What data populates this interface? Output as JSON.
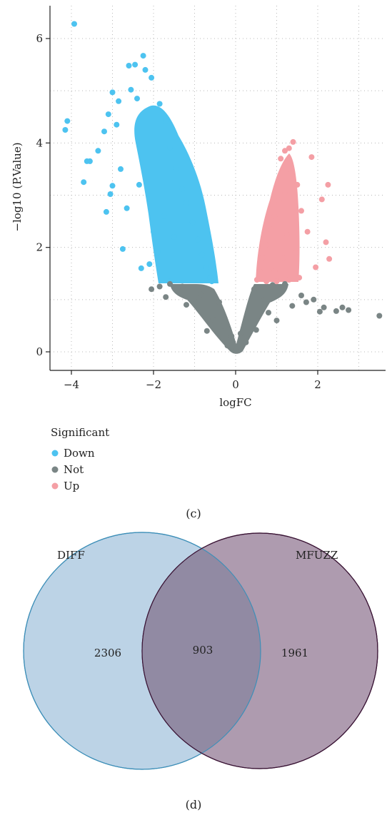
{
  "chart_data": [
    {
      "type": "scatter",
      "panel_label": "(c)",
      "title": "",
      "xlabel": "logFC",
      "ylabel": "−log10 (P.Value)",
      "xlim": [
        -4.4,
        3.8
      ],
      "ylim": [
        -0.35,
        6.6
      ],
      "x_ticks": [
        -4,
        -2,
        0,
        2
      ],
      "x_tick_labels": [
        "−4",
        "−2",
        "0",
        "2"
      ],
      "y_ticks": [
        0,
        2,
        4,
        6
      ],
      "y_tick_labels": [
        "0",
        "2",
        "4",
        "6"
      ],
      "grid": true,
      "legend": {
        "title": "Significant",
        "placement": "bottom-left",
        "entries": [
          {
            "name": "Down",
            "color": "#4DC3F0"
          },
          {
            "name": "Not",
            "color": "#7A8585"
          },
          {
            "name": "Up",
            "color": "#F49FA5"
          }
        ]
      },
      "series": [
        {
          "name": "Down",
          "color": "#4DC3F0",
          "points": [
            [
              -3.93,
              6.28
            ],
            [
              -4.1,
              4.42
            ],
            [
              -4.15,
              4.25
            ],
            [
              -3.62,
              3.65
            ],
            [
              -3.55,
              3.65
            ],
            [
              -3.7,
              3.25
            ],
            [
              -3.15,
              2.68
            ],
            [
              -2.75,
              1.97
            ],
            [
              -2.3,
              1.6
            ],
            [
              -2.1,
              1.68
            ],
            [
              -3.05,
              3.02
            ],
            [
              -3.0,
              3.18
            ],
            [
              -3.35,
              3.85
            ],
            [
              -3.2,
              4.22
            ],
            [
              -3.0,
              4.97
            ],
            [
              -2.85,
              4.8
            ],
            [
              -2.6,
              5.48
            ],
            [
              -2.45,
              5.5
            ],
            [
              -2.25,
              5.67
            ],
            [
              -2.2,
              5.4
            ],
            [
              -2.05,
              5.25
            ],
            [
              -2.55,
              5.02
            ],
            [
              -2.4,
              4.85
            ],
            [
              -3.1,
              4.55
            ],
            [
              -2.9,
              4.35
            ],
            [
              -1.85,
              4.75
            ],
            [
              -1.7,
              4.42
            ],
            [
              -1.6,
              3.92
            ],
            [
              -1.45,
              3.52
            ],
            [
              -1.3,
              3.12
            ],
            [
              -1.2,
              2.85
            ],
            [
              -1.05,
              2.48
            ],
            [
              -0.92,
              2.15
            ],
            [
              -0.82,
              1.86
            ],
            [
              -0.72,
              1.62
            ],
            [
              -0.62,
              1.42
            ],
            [
              -0.58,
              1.35
            ],
            [
              -1.62,
              1.35
            ],
            [
              -1.9,
              1.9
            ],
            [
              -2.0,
              2.3
            ],
            [
              -2.65,
              2.75
            ],
            [
              -2.8,
              3.5
            ],
            [
              -2.35,
              3.2
            ],
            [
              -1.75,
              2.6
            ],
            [
              -1.5,
              2.2
            ]
          ]
        },
        {
          "name": "Not",
          "color": "#7A8585",
          "points": [
            [
              3.5,
              0.69
            ],
            [
              2.75,
              0.8
            ],
            [
              2.6,
              0.85
            ],
            [
              2.45,
              0.78
            ],
            [
              2.15,
              0.85
            ],
            [
              2.05,
              0.77
            ],
            [
              1.9,
              1.0
            ],
            [
              1.6,
              1.08
            ],
            [
              1.72,
              0.95
            ],
            [
              1.38,
              0.88
            ],
            [
              1.2,
              1.3
            ],
            [
              0.8,
              0.75
            ],
            [
              0.5,
              0.42
            ],
            [
              0.25,
              0.18
            ],
            [
              0.0,
              0.02
            ],
            [
              -0.2,
              0.12
            ],
            [
              -0.55,
              0.62
            ],
            [
              -0.95,
              0.95
            ],
            [
              -1.3,
              1.25
            ],
            [
              -1.6,
              1.3
            ],
            [
              -1.85,
              1.25
            ],
            [
              -2.05,
              1.2
            ],
            [
              -1.7,
              1.05
            ],
            [
              -1.2,
              0.9
            ],
            [
              -0.85,
              1.1
            ],
            [
              -0.4,
              0.95
            ],
            [
              -0.3,
              0.5
            ],
            [
              0.3,
              0.65
            ],
            [
              0.45,
              1.2
            ],
            [
              0.9,
              1.28
            ],
            [
              1.0,
              0.6
            ],
            [
              0.7,
              1.0
            ],
            [
              -0.7,
              0.4
            ],
            [
              0.12,
              0.35
            ],
            [
              -0.1,
              0.3
            ]
          ]
        },
        {
          "name": "Up",
          "color": "#F49FA5",
          "points": [
            [
              1.4,
              4.02
            ],
            [
              1.3,
              3.9
            ],
            [
              1.2,
              3.85
            ],
            [
              1.1,
              3.7
            ],
            [
              1.85,
              3.73
            ],
            [
              2.25,
              3.2
            ],
            [
              2.1,
              2.92
            ],
            [
              2.2,
              2.1
            ],
            [
              2.28,
              1.78
            ],
            [
              1.95,
              1.62
            ],
            [
              1.75,
              2.3
            ],
            [
              1.6,
              2.7
            ],
            [
              1.5,
              3.2
            ],
            [
              1.35,
              3.42
            ],
            [
              1.2,
              3.05
            ],
            [
              1.05,
              2.9
            ],
            [
              0.95,
              2.6
            ],
            [
              0.85,
              2.35
            ],
            [
              0.75,
              2.05
            ],
            [
              0.65,
              1.8
            ],
            [
              0.58,
              1.55
            ],
            [
              0.52,
              1.38
            ],
            [
              0.75,
              1.35
            ],
            [
              1.0,
              1.35
            ],
            [
              1.3,
              1.38
            ],
            [
              1.55,
              1.42
            ],
            [
              1.45,
              1.9
            ],
            [
              1.25,
              2.25
            ],
            [
              1.15,
              1.8
            ],
            [
              0.95,
              1.55
            ]
          ]
        }
      ]
    },
    {
      "type": "venn",
      "panel_label": "(d)",
      "sets": [
        {
          "name": "DIFF",
          "color": "#BCD3E6",
          "stroke": "#3E8FB8"
        },
        {
          "name": "MFUZZ",
          "color": "#AE9BAF",
          "stroke": "#3A1435"
        }
      ],
      "overlap_color": "#918AA3",
      "counts": {
        "DIFF_only": "2306",
        "both": "903",
        "MFUZZ_only": "1961"
      }
    }
  ]
}
